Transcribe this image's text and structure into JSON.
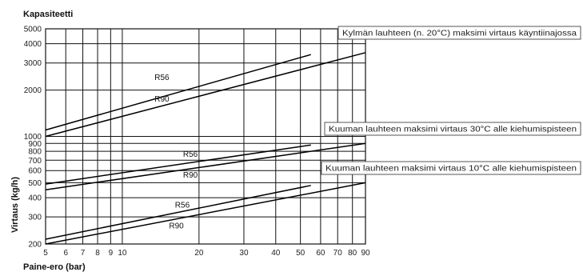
{
  "chart_data": {
    "type": "line",
    "title": "Kapasiteetti",
    "xlabel": "Paine-ero (bar)",
    "ylabel": "Virtaus (kg/h)",
    "x_scale": "log",
    "y_scale": "log",
    "xlim": [
      5,
      90
    ],
    "ylim": [
      200,
      5000
    ],
    "grid": true,
    "x_ticks": [
      5,
      6,
      7,
      8,
      9,
      10,
      20,
      30,
      40,
      50,
      60,
      70,
      80,
      90
    ],
    "y_ticks": [
      200,
      300,
      400,
      500,
      600,
      700,
      800,
      900,
      1000,
      2000,
      3000,
      4000,
      5000
    ],
    "groups": [
      {
        "note": "Kylmän lauhteen (n. 20°C) maksimi virtaus käyntiinajossa",
        "series": [
          {
            "name": "R56",
            "x": [
              5,
              55
            ],
            "y": [
              1100,
              3400
            ]
          },
          {
            "name": "R90",
            "x": [
              5,
              90
            ],
            "y": [
              1000,
              3500
            ]
          }
        ]
      },
      {
        "note": "Kuuman lauhteen maksimi virtaus 30°C alle kiehumispisteen",
        "series": [
          {
            "name": "R56",
            "x": [
              5,
              55
            ],
            "y": [
              490,
              880
            ]
          },
          {
            "name": "R90",
            "x": [
              5,
              90
            ],
            "y": [
              450,
              900
            ]
          }
        ]
      },
      {
        "note": "Kuuman lauhteen maksimi virtaus 10°C alle kiehumispisteen",
        "series": [
          {
            "name": "R56",
            "x": [
              5,
              55
            ],
            "y": [
              215,
              480
            ]
          },
          {
            "name": "R90",
            "x": [
              5,
              90
            ],
            "y": [
              200,
              500
            ]
          }
        ]
      }
    ]
  }
}
